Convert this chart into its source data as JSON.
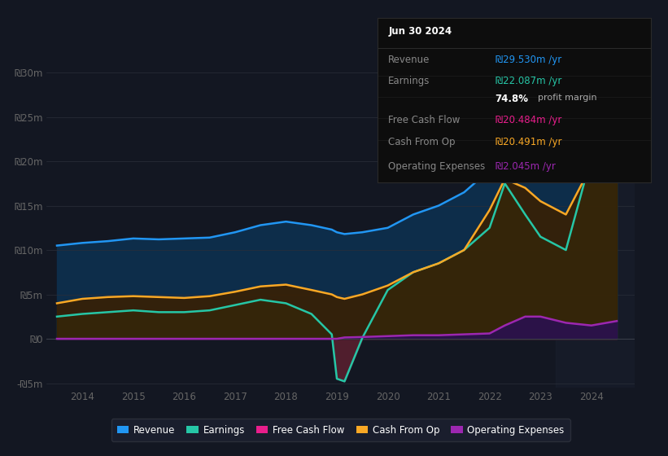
{
  "bg_color": "#131722",
  "years": [
    2013.5,
    2014.0,
    2014.5,
    2015.0,
    2015.5,
    2016.0,
    2016.5,
    2017.0,
    2017.5,
    2018.0,
    2018.5,
    2018.9,
    2019.0,
    2019.15,
    2019.5,
    2020.0,
    2020.5,
    2021.0,
    2021.5,
    2022.0,
    2022.3,
    2022.7,
    2023.0,
    2023.5,
    2024.0,
    2024.5
  ],
  "revenue": [
    10.5,
    10.8,
    11.0,
    11.3,
    11.2,
    11.3,
    11.4,
    12.0,
    12.8,
    13.2,
    12.8,
    12.3,
    12.0,
    11.8,
    12.0,
    12.5,
    14.0,
    15.0,
    16.5,
    19.0,
    22.5,
    24.0,
    25.5,
    27.0,
    28.8,
    29.5
  ],
  "earnings": [
    2.5,
    2.8,
    3.0,
    3.2,
    3.0,
    3.0,
    3.2,
    3.8,
    4.4,
    4.0,
    2.8,
    0.5,
    -4.5,
    -4.8,
    0.1,
    5.5,
    7.5,
    8.5,
    10.0,
    12.5,
    17.5,
    14.0,
    11.5,
    10.0,
    20.5,
    22.0
  ],
  "cash_from_op": [
    4.0,
    4.5,
    4.7,
    4.8,
    4.7,
    4.6,
    4.8,
    5.3,
    5.9,
    6.1,
    5.5,
    5.0,
    4.7,
    4.5,
    5.0,
    6.0,
    7.5,
    8.5,
    10.0,
    14.5,
    18.0,
    17.0,
    15.5,
    14.0,
    19.5,
    20.5
  ],
  "op_expenses": [
    0.0,
    0.0,
    0.0,
    0.0,
    0.0,
    0.0,
    0.0,
    0.0,
    0.0,
    0.0,
    0.0,
    0.0,
    0.0,
    0.15,
    0.2,
    0.3,
    0.4,
    0.4,
    0.5,
    0.6,
    1.5,
    2.5,
    2.5,
    1.8,
    1.5,
    2.0
  ],
  "revenue_color": "#2196f3",
  "earnings_color": "#26c6a6",
  "fcf_color": "#e91e8c",
  "cashop_color": "#f9a825",
  "opex_color": "#9c27b0",
  "ylim_min": -5.5,
  "ylim_max": 32,
  "xlim_min": 2013.3,
  "xlim_max": 2024.85,
  "ytick_labels": [
    "-₪5m",
    "₪0",
    "₪5m",
    "₪10m",
    "₪15m",
    "₪20m",
    "₪25m",
    "₪30m"
  ],
  "ytick_values": [
    -5,
    0,
    5,
    10,
    15,
    20,
    25,
    30
  ],
  "xtick_labels": [
    "2014",
    "2015",
    "2016",
    "2017",
    "2018",
    "2019",
    "2020",
    "2021",
    "2022",
    "2023",
    "2024"
  ],
  "xtick_values": [
    2014,
    2015,
    2016,
    2017,
    2018,
    2019,
    2020,
    2021,
    2022,
    2023,
    2024
  ],
  "legend_items": [
    "Revenue",
    "Earnings",
    "Free Cash Flow",
    "Cash From Op",
    "Operating Expenses"
  ],
  "legend_colors": [
    "#2196f3",
    "#26c6a6",
    "#e91e8c",
    "#f9a825",
    "#9c27b0"
  ],
  "tooltip_title": "Jun 30 2024",
  "tooltip_rows": [
    {
      "label": "Revenue",
      "value": "₪29.530m /yr",
      "color": "#2196f3"
    },
    {
      "label": "Earnings",
      "value": "₪22.087m /yr",
      "color": "#26c6a6"
    },
    {
      "label": "",
      "value": "74.8% profit margin",
      "color": "#ffffff"
    },
    {
      "label": "Free Cash Flow",
      "value": "₪20.484m /yr",
      "color": "#e91e8c"
    },
    {
      "label": "Cash From Op",
      "value": "₪20.491m /yr",
      "color": "#f9a825"
    },
    {
      "label": "Operating Expenses",
      "value": "₪2.045m /yr",
      "color": "#9c27b0"
    }
  ]
}
